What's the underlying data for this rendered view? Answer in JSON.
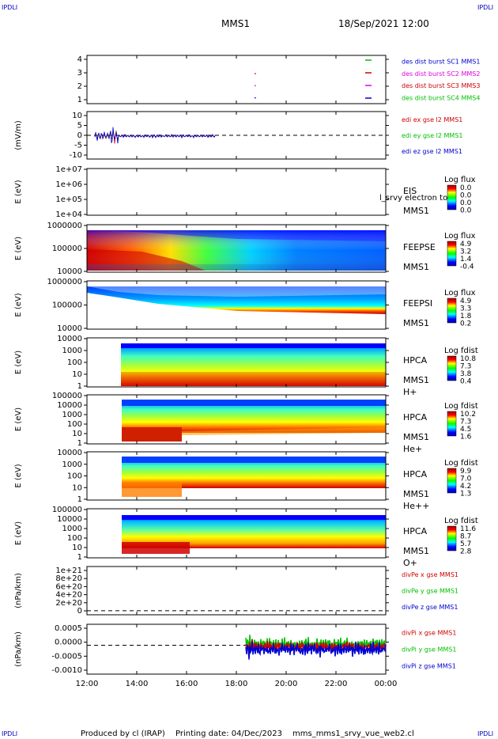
{
  "header": {
    "corner_left_top": "IPDLI",
    "corner_right_top": "IPDLI",
    "corner_left_bottom": "IPDLI",
    "corner_right_bottom": "IPDLI",
    "title": "MMS1",
    "date_time": "18/Sep/2021 12:00"
  },
  "footer": {
    "produced_by": "Produced by cl (IRAP)",
    "printing_date": "Printing date: 04/Dec/2023",
    "file": "mms_mms1_srvy_vue_web2.cl"
  },
  "x_axis": {
    "ticks": [
      "12:00",
      "14:00",
      "16:00",
      "18:00",
      "20:00",
      "22:00",
      "00:00"
    ]
  },
  "colors": {
    "red": "#d00000",
    "green": "#00c000",
    "blue": "#0000d0",
    "magenta": "#e000e0"
  },
  "chart_data": [
    {
      "id": "des-burst",
      "type": "scatter",
      "yticks": [
        "4",
        "3",
        "2",
        "1"
      ],
      "ylim": [
        0.5,
        4.5
      ],
      "legend": [
        "des dist burst SC1 MMS1",
        "des dist burst SC2 MMS2",
        "des dist burst SC3 MMS3",
        "des dist burst SC4 MMS4"
      ],
      "series": [
        {
          "name": "des dist burst SC1 MMS1",
          "color": "#0000d0",
          "points": [
            [
              18.75,
              1
            ]
          ]
        },
        {
          "name": "des dist burst SC2 MMS2",
          "color": "#e000e0",
          "points": [
            [
              18.75,
              2
            ]
          ]
        },
        {
          "name": "des dist burst SC3 MMS3",
          "color": "#d00000",
          "points": [
            [
              18.75,
              3
            ]
          ]
        }
      ]
    },
    {
      "id": "edi",
      "type": "line",
      "ylabel": "(mV/m)",
      "yticks": [
        "10",
        "5",
        "0",
        "-5",
        "-10"
      ],
      "ylim": [
        -13,
        13
      ],
      "legend": [
        "edi ex gse l2 MMS1",
        "edi ey gse l2 MMS1",
        "edi ez gse l2 MMS1"
      ]
    },
    {
      "id": "eis",
      "type": "heatmap",
      "ylabel": "E (eV)",
      "yticks": [
        "1e+07",
        "1e+06",
        "1e+05",
        "1e+04"
      ],
      "labels": [
        "EIS",
        "MMS1"
      ],
      "overlay_text": "l_srvy electron to",
      "colorbar_title": "Log flux",
      "colorbar_ticks": [
        "0.0",
        "0.0",
        "0.0",
        "0.0"
      ]
    },
    {
      "id": "feeps-e",
      "type": "heatmap",
      "ylabel": "E (eV)",
      "yticks": [
        "1000000",
        "100000",
        "10000"
      ],
      "labels": [
        "FEEPSE",
        "MMS1"
      ],
      "colorbar_title": "Log flux",
      "colorbar_ticks": [
        "4.9",
        "3.2",
        "1.4",
        "-0.4"
      ]
    },
    {
      "id": "feeps-i",
      "type": "heatmap",
      "ylabel": "E (eV)",
      "yticks": [
        "1000000",
        "100000",
        "10000"
      ],
      "labels": [
        "FEEPSI",
        "MMS1"
      ],
      "colorbar_title": "Log flux",
      "colorbar_ticks": [
        "4.9",
        "3.3",
        "1.8",
        "0.2"
      ]
    },
    {
      "id": "hpca-h",
      "type": "heatmap",
      "ylabel": "E (eV)",
      "yticks": [
        "10000",
        "1000",
        "100",
        "10",
        "1"
      ],
      "labels": [
        "HPCA",
        "MMS1",
        "H+"
      ],
      "colorbar_title": "Log fdist",
      "colorbar_ticks": [
        "10.8",
        "7.3",
        "3.8",
        "0.4"
      ]
    },
    {
      "id": "hpca-he",
      "type": "heatmap",
      "ylabel": "E (eV)",
      "yticks": [
        "100000",
        "10000",
        "1000",
        "100",
        "10",
        "1"
      ],
      "labels": [
        "HPCA",
        "MMS1",
        "He+"
      ],
      "colorbar_title": "Log fdist",
      "colorbar_ticks": [
        "10.2",
        "7.3",
        "4.5",
        "1.6"
      ]
    },
    {
      "id": "hpca-he2",
      "type": "heatmap",
      "ylabel": "E (eV)",
      "yticks": [
        "10000",
        "1000",
        "100",
        "10",
        "1"
      ],
      "labels": [
        "HPCA",
        "MMS1",
        "He++"
      ],
      "colorbar_title": "Log fdist",
      "colorbar_ticks": [
        "9.9",
        "7.0",
        "4.2",
        "1.3"
      ]
    },
    {
      "id": "hpca-o",
      "type": "heatmap",
      "ylabel": "E (eV)",
      "yticks": [
        "100000",
        "10000",
        "1000",
        "100",
        "10",
        "1"
      ],
      "labels": [
        "HPCA",
        "MMS1",
        "O+"
      ],
      "colorbar_title": "Log fdist",
      "colorbar_ticks": [
        "11.6",
        "8.7",
        "5.7",
        "2.8"
      ]
    },
    {
      "id": "divpe",
      "type": "line",
      "ylabel": "(nPa/km)",
      "yticks": [
        "1e+21",
        "8e+20",
        "6e+20",
        "4e+20",
        "2e+20",
        "0"
      ],
      "ylim": [
        -1e+20,
        1.1e+21
      ],
      "legend": [
        "divPe x gse MMS1",
        "divPe y gse MMS1",
        "divPe z gse MMS1"
      ]
    },
    {
      "id": "divpi",
      "type": "line",
      "ylabel": "(nPa/km)",
      "yticks": [
        "0.0005",
        "0.0000",
        "-0.0005",
        "-0.0010"
      ],
      "ylim": [
        -0.0011,
        0.0008
      ],
      "legend": [
        "divPi x gse MMS1",
        "divPi y gse MMS1",
        "divPi z gse MMS1"
      ]
    }
  ]
}
